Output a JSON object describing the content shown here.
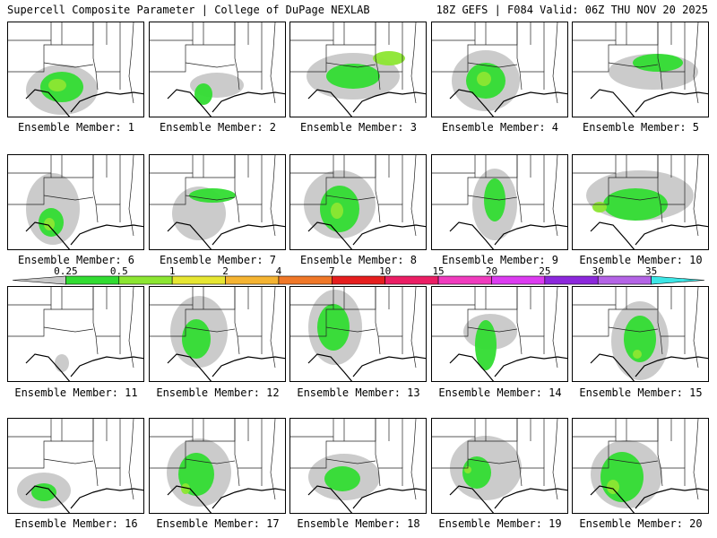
{
  "header": {
    "left": "Supercell Composite Parameter | College of DuPage NEXLAB",
    "right": "18Z GEFS | F084 Valid: 06Z THU NOV 20 2025"
  },
  "members": [
    {
      "label": "Ensemble Member: 1"
    },
    {
      "label": "Ensemble Member: 2"
    },
    {
      "label": "Ensemble Member: 3"
    },
    {
      "label": "Ensemble Member: 4"
    },
    {
      "label": "Ensemble Member: 5"
    },
    {
      "label": "Ensemble Member: 6"
    },
    {
      "label": "Ensemble Member: 7"
    },
    {
      "label": "Ensemble Member: 8"
    },
    {
      "label": "Ensemble Member: 9"
    },
    {
      "label": "Ensemble Member: 10"
    },
    {
      "label": "Ensemble Member: 11"
    },
    {
      "label": "Ensemble Member: 12"
    },
    {
      "label": "Ensemble Member: 13"
    },
    {
      "label": "Ensemble Member: 14"
    },
    {
      "label": "Ensemble Member: 15"
    },
    {
      "label": "Ensemble Member: 16"
    },
    {
      "label": "Ensemble Member: 17"
    },
    {
      "label": "Ensemble Member: 18"
    },
    {
      "label": "Ensemble Member: 19"
    },
    {
      "label": "Ensemble Member: 20"
    }
  ],
  "colorbar": {
    "ticks": [
      "0.25",
      "0.5",
      "1",
      "2",
      "4",
      "7",
      "10",
      "15",
      "20",
      "25",
      "30",
      "35"
    ],
    "colors": [
      "#c8c8c8",
      "#32dc32",
      "#8ce632",
      "#e6e632",
      "#f5b432",
      "#f07828",
      "#e61e1e",
      "#eb1e64",
      "#f03cbe",
      "#dc3cf0",
      "#8c28dc",
      "#b464e6",
      "#3ce6e6"
    ]
  }
}
